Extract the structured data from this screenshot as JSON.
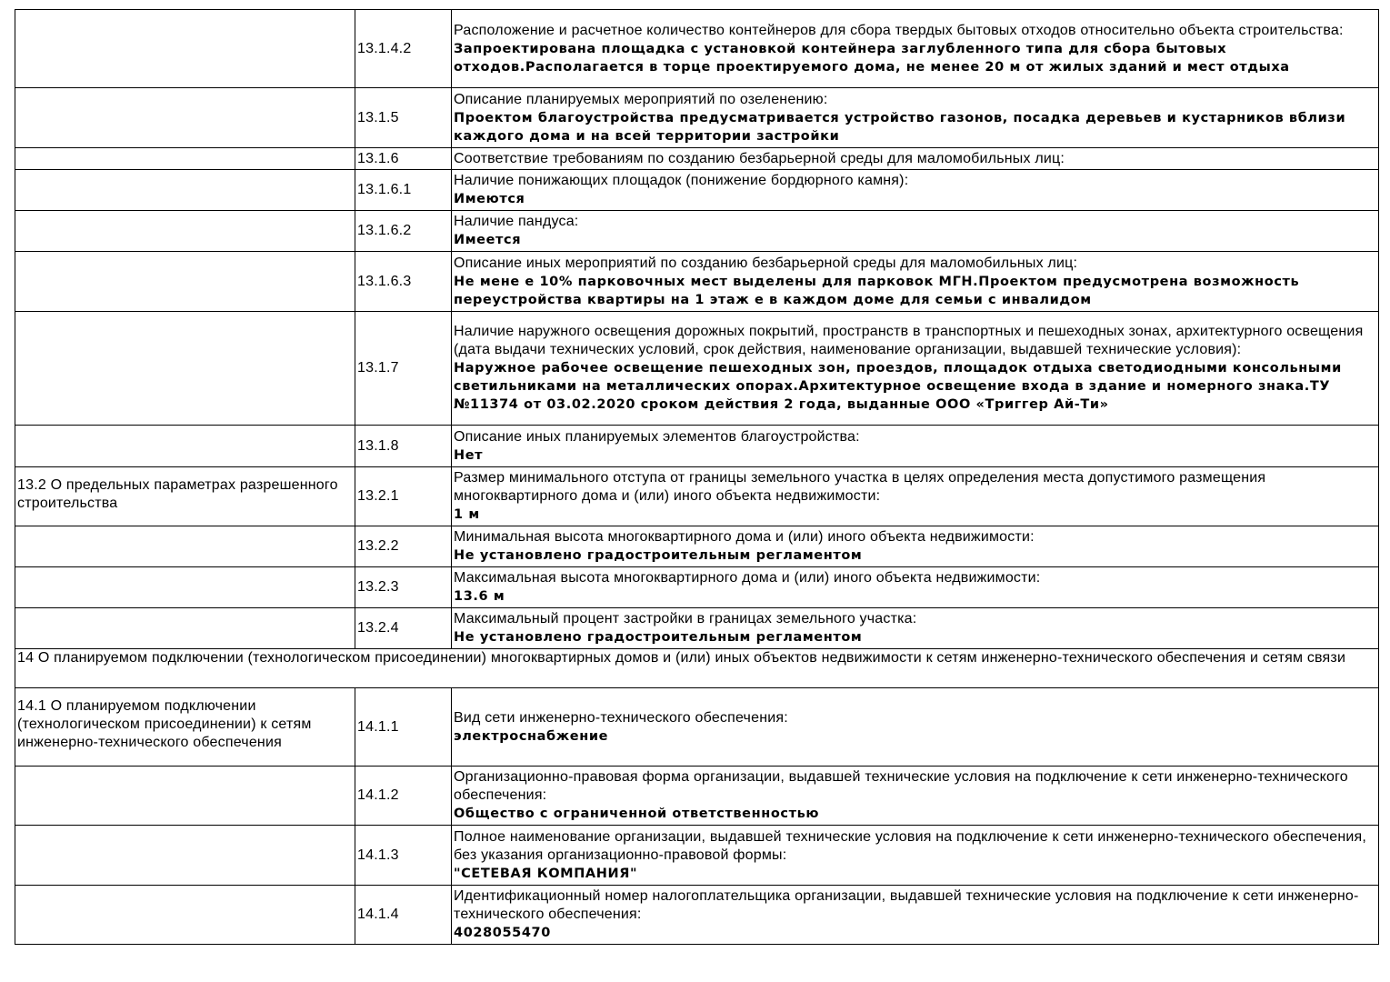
{
  "rows": [
    {
      "section": "",
      "code": "13.1.4.2",
      "label": "Расположение и расчетное количество контейнеров для сбора твердых бытовых отходов относительно объекта строительства:",
      "value": "Запроектирована площадка с установкой контейнера заглубленного типа для сбора бытовых отходов.Располагается в торце проектируемого дома, не менее 20 м от жилых зданий и мест отдыха"
    },
    {
      "section": "",
      "code": "13.1.5",
      "label": "Описание планируемых мероприятий по озеленению:",
      "value": "Проектом благоустройства предусматривается устройство газонов, посадка деревьев и кустарников вблизи каждого дома и на всей территории застройки"
    },
    {
      "section": "",
      "code": "13.1.6",
      "label": "Соответствие требованиям по созданию безбарьерной среды для маломобильных лиц:",
      "value": ""
    },
    {
      "section": "",
      "code": "13.1.6.1",
      "label": "Наличие понижающих площадок (понижение бордюрного камня):",
      "value": "Имеются"
    },
    {
      "section": "",
      "code": "13.1.6.2",
      "label": "Наличие пандуса:",
      "value": "Имеется"
    },
    {
      "section": "",
      "code": "13.1.6.3",
      "label": "Описание иных мероприятий по созданию безбарьерной среды для маломобильных лиц:",
      "value": "Не мене е 10% парковочных мест выделены для парковок МГН.Проектом предусмотрена возможность переустройства квартиры на 1 этаж е в каждом доме для семьи с инвалидом"
    },
    {
      "section": "",
      "code": "13.1.7",
      "label": "Наличие наружного освещения дорожных покрытий, пространств в транспортных и пешеходных зонах, архитектурного освещения (дата выдачи технических условий, срок действия, наименование организации, выдавшей технические условия):",
      "value": "Наружное рабочее освещение пешеходных зон, проездов, площадок отдыха светодиодными консольными светильниками на металлических опорах.Архитектурное освещение входа в здание и номерного знака.ТУ №11374 от 03.02.2020 сроком действия 2 года, выданные ООО «Триггер Ай-Ти»"
    },
    {
      "section": "",
      "code": "13.1.8",
      "label": "Описание иных планируемых элементов благоустройства:",
      "value": "Нет"
    },
    {
      "section": "13.2 О предельных параметрах разрешенного строительства",
      "code": "13.2.1",
      "label": "Размер минимального отступа от границы земельного участка в целях определения места допустимого размещения многоквартирного дома и (или) иного объекта недвижимости:",
      "value": "1 м"
    },
    {
      "section": "",
      "code": "13.2.2",
      "label": "Минимальная высота многоквартирного дома и (или) иного объекта недвижимости:",
      "value": "Не установлено градостроительным регламентом"
    },
    {
      "section": "",
      "code": "13.2.3",
      "label": "Максимальная высота многоквартирного дома и (или) иного объекта недвижимости:",
      "value": "13.6 м"
    },
    {
      "section": "",
      "code": "13.2.4",
      "label": "Максимальный процент застройки в границах земельного участка:",
      "value": "Не установлено градостроительным регламентом"
    }
  ],
  "heading14": "14 О планируемом подключении (технологическом присоединении) многоквартирных домов и (или) иных объектов недвижимости к сетям инженерно-технического обеспечения и сетям связи",
  "rows14": [
    {
      "section": "14.1 О планируемом подключении (технологическом присоединении) к сетям инженерно-технического обеспечения",
      "code": "14.1.1",
      "label": "Вид сети инженерно-технического обеспечения:",
      "value": "электроснабжение"
    },
    {
      "section": "",
      "code": "14.1.2",
      "label": "Организационно-правовая форма организации, выдавшей технические условия на подключение к сети инженерно-технического обеспечения:",
      "value": "Общество с ограниченной ответственностью"
    },
    {
      "section": "",
      "code": "14.1.3",
      "label": "Полное наименование организации, выдавшей технические условия на подключение к сети инженерно-технического обеспечения, без указания организационно-правовой формы:",
      "value": "\"СЕТЕВАЯ КОМПАНИЯ\""
    },
    {
      "section": "",
      "code": "14.1.4",
      "label": "Идентификационный номер налогоплательщика организации, выдавшей технические условия на подключение к сети инженерно-технического обеспечения:",
      "value": "4028055470"
    }
  ]
}
